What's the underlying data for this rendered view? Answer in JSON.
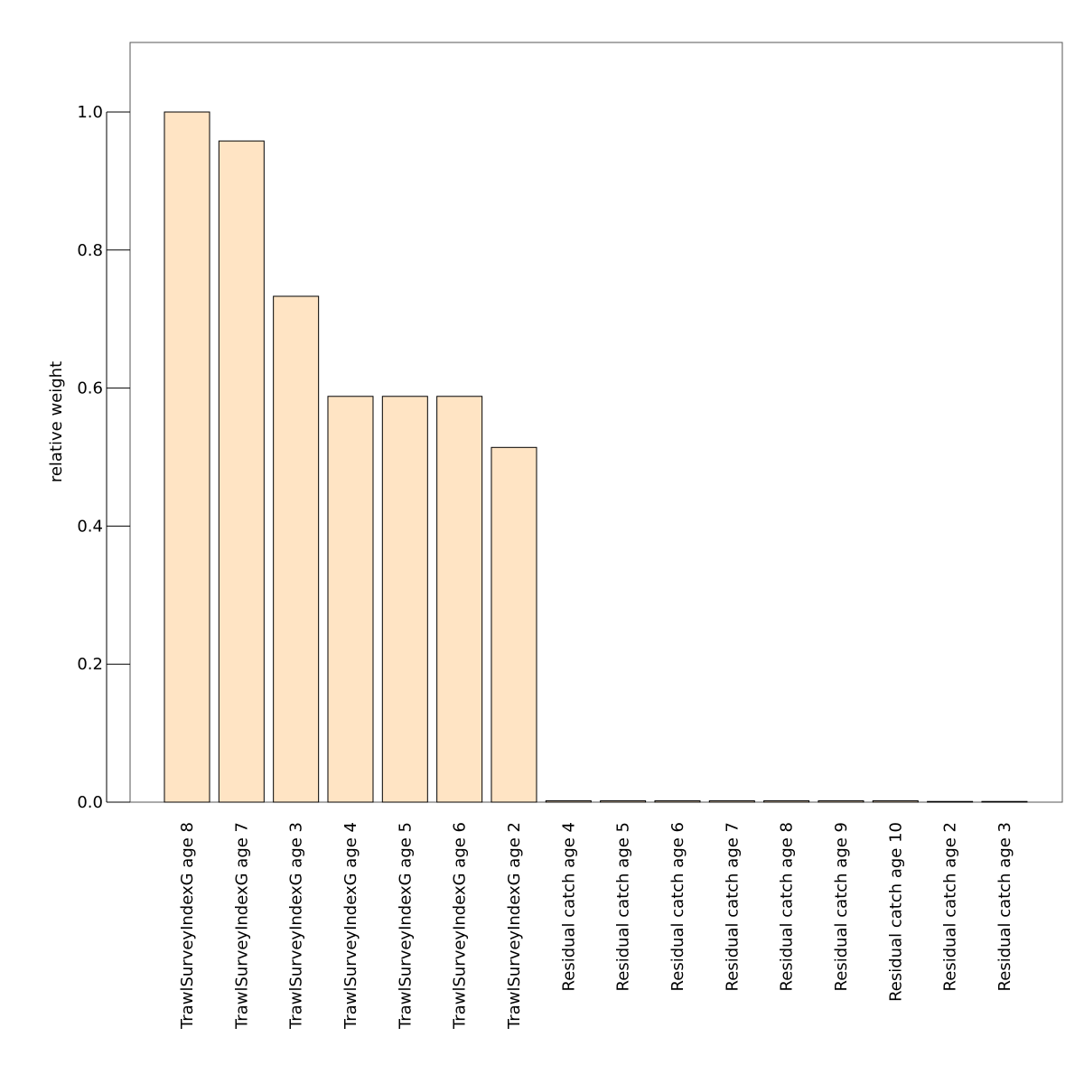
{
  "chart_data": {
    "type": "bar",
    "title": "",
    "xlabel": "",
    "ylabel": "relative weight",
    "categories": [
      "TrawlSurveyIndexG age 8",
      "TrawlSurveyIndexG age 7",
      "TrawlSurveyIndexG age 3",
      "TrawlSurveyIndexG age 4",
      "TrawlSurveyIndexG age 5",
      "TrawlSurveyIndexG age 6",
      "TrawlSurveyIndexG age 2",
      "Residual catch age 4",
      "Residual catch age 5",
      "Residual catch age 6",
      "Residual catch age 7",
      "Residual catch age 8",
      "Residual catch age 9",
      "Residual catch age 10",
      "Residual catch age 2",
      "Residual catch age 3"
    ],
    "values": [
      1.0,
      0.958,
      0.733,
      0.588,
      0.588,
      0.588,
      0.514,
      0.002,
      0.002,
      0.002,
      0.002,
      0.002,
      0.002,
      0.002,
      0.001,
      0.001
    ],
    "ylim": [
      -0.1,
      1.1
    ],
    "yticks": [
      0.0,
      0.2,
      0.4,
      0.6,
      0.8,
      1.0
    ],
    "ytick_labels": [
      "0.0",
      "0.2",
      "0.4",
      "0.6",
      "0.8",
      "1.0"
    ],
    "bar_color": "#ffe4c4",
    "bar_edge_color": "#000000",
    "grid": false,
    "legend": "none"
  }
}
